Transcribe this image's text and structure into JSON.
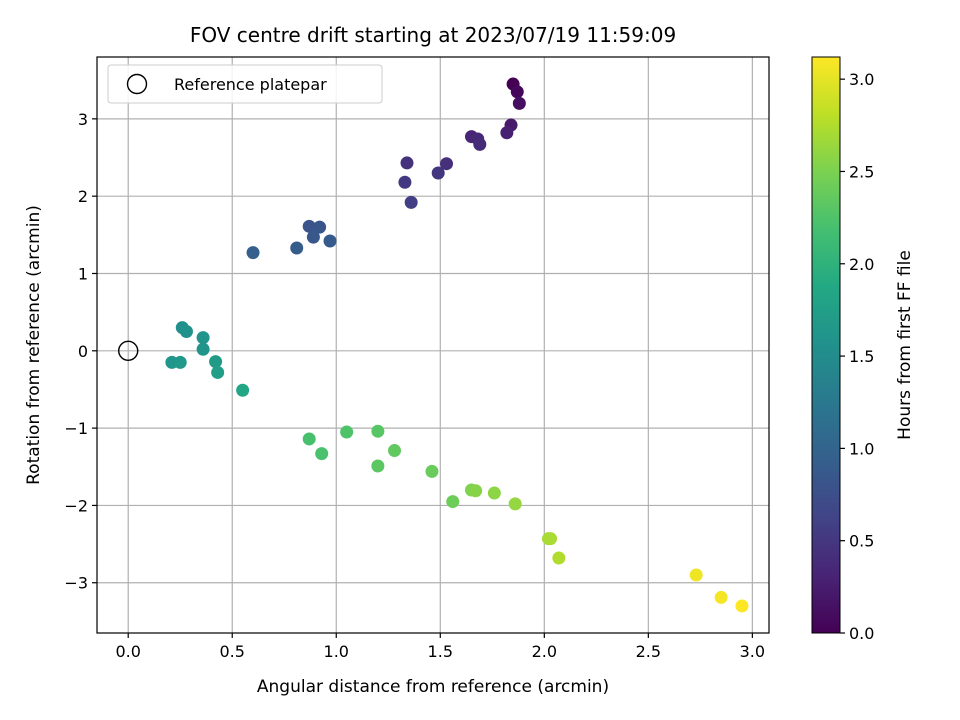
{
  "chart_data": {
    "type": "scatter",
    "title": "FOV centre drift starting at 2023/07/19 11:59:09",
    "xlabel": "Angular distance from reference (arcmin)",
    "ylabel": "Rotation from reference (arcmin)",
    "xlim": [
      -0.15,
      3.08
    ],
    "ylim": [
      -3.65,
      3.8
    ],
    "xticks": [
      0.0,
      0.5,
      1.0,
      1.5,
      2.0,
      2.5,
      3.0
    ],
    "xtick_labels": [
      "0.0",
      "0.5",
      "1.0",
      "1.5",
      "2.0",
      "2.5",
      "3.0"
    ],
    "yticks": [
      -3,
      -2,
      -1,
      0,
      1,
      2,
      3
    ],
    "ytick_labels": [
      "−3",
      "−2",
      "−1",
      "0",
      "1",
      "2",
      "3"
    ],
    "grid": true,
    "legend": {
      "position": "top-left",
      "entries": [
        "Reference platepar"
      ]
    },
    "reference_point": {
      "x": 0.0,
      "y": 0.0
    },
    "colorbar": {
      "label": "Hours from first FF file",
      "range": [
        0.0,
        3.12
      ],
      "ticks": [
        0.0,
        0.5,
        1.0,
        1.5,
        2.0,
        2.5,
        3.0
      ],
      "tick_labels": [
        "0.0",
        "0.5",
        "1.0",
        "1.5",
        "2.0",
        "2.5",
        "3.0"
      ],
      "colormap": "viridis"
    },
    "points": [
      {
        "x": 1.85,
        "y": 3.45,
        "c": 0.0
      },
      {
        "x": 1.87,
        "y": 3.35,
        "c": 0.05
      },
      {
        "x": 1.88,
        "y": 3.2,
        "c": 0.12
      },
      {
        "x": 1.84,
        "y": 2.92,
        "c": 0.22
      },
      {
        "x": 1.82,
        "y": 2.82,
        "c": 0.28
      },
      {
        "x": 1.65,
        "y": 2.77,
        "c": 0.32
      },
      {
        "x": 1.68,
        "y": 2.74,
        "c": 0.35
      },
      {
        "x": 1.69,
        "y": 2.67,
        "c": 0.38
      },
      {
        "x": 1.53,
        "y": 2.42,
        "c": 0.42
      },
      {
        "x": 1.34,
        "y": 2.43,
        "c": 0.45
      },
      {
        "x": 1.49,
        "y": 2.3,
        "c": 0.48
      },
      {
        "x": 1.33,
        "y": 2.18,
        "c": 0.52
      },
      {
        "x": 1.36,
        "y": 1.92,
        "c": 0.58
      },
      {
        "x": 0.87,
        "y": 1.61,
        "c": 0.8
      },
      {
        "x": 0.92,
        "y": 1.6,
        "c": 0.83
      },
      {
        "x": 0.89,
        "y": 1.47,
        "c": 0.86
      },
      {
        "x": 0.97,
        "y": 1.42,
        "c": 0.88
      },
      {
        "x": 0.81,
        "y": 1.33,
        "c": 0.9
      },
      {
        "x": 0.6,
        "y": 1.27,
        "c": 0.95
      },
      {
        "x": 0.26,
        "y": 0.3,
        "c": 1.55
      },
      {
        "x": 0.28,
        "y": 0.25,
        "c": 1.58
      },
      {
        "x": 0.36,
        "y": 0.17,
        "c": 1.6
      },
      {
        "x": 0.36,
        "y": 0.02,
        "c": 1.62
      },
      {
        "x": 0.21,
        "y": -0.15,
        "c": 1.63
      },
      {
        "x": 0.25,
        "y": -0.15,
        "c": 1.65
      },
      {
        "x": 0.42,
        "y": -0.14,
        "c": 1.7
      },
      {
        "x": 0.43,
        "y": -0.28,
        "c": 1.72
      },
      {
        "x": 0.55,
        "y": -0.51,
        "c": 1.85
      },
      {
        "x": 0.87,
        "y": -1.14,
        "c": 2.2
      },
      {
        "x": 0.93,
        "y": -1.33,
        "c": 2.22
      },
      {
        "x": 1.05,
        "y": -1.05,
        "c": 2.25
      },
      {
        "x": 1.2,
        "y": -1.04,
        "c": 2.3
      },
      {
        "x": 1.2,
        "y": -1.49,
        "c": 2.32
      },
      {
        "x": 1.28,
        "y": -1.29,
        "c": 2.35
      },
      {
        "x": 1.46,
        "y": -1.56,
        "c": 2.4
      },
      {
        "x": 1.56,
        "y": -1.95,
        "c": 2.42
      },
      {
        "x": 1.65,
        "y": -1.8,
        "c": 2.52
      },
      {
        "x": 1.67,
        "y": -1.81,
        "c": 2.55
      },
      {
        "x": 1.76,
        "y": -1.84,
        "c": 2.58
      },
      {
        "x": 1.86,
        "y": -1.98,
        "c": 2.62
      },
      {
        "x": 2.02,
        "y": -2.43,
        "c": 2.7
      },
      {
        "x": 2.03,
        "y": -2.43,
        "c": 2.72
      },
      {
        "x": 2.07,
        "y": -2.68,
        "c": 2.75
      },
      {
        "x": 2.73,
        "y": -2.9,
        "c": 3.05
      },
      {
        "x": 2.85,
        "y": -3.19,
        "c": 3.08
      },
      {
        "x": 2.95,
        "y": -3.3,
        "c": 3.12
      }
    ]
  }
}
